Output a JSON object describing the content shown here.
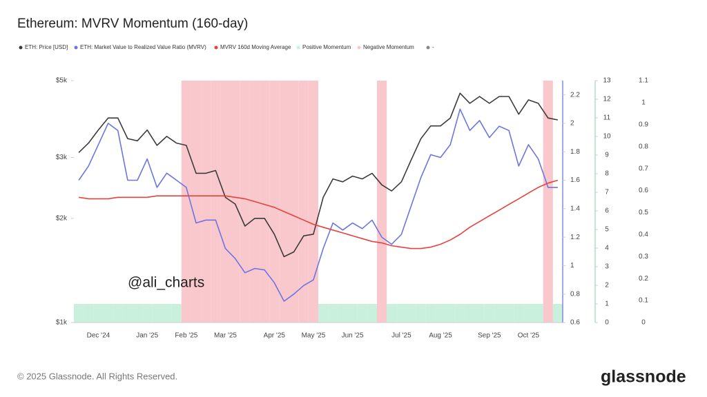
{
  "chart_data": {
    "type": "line",
    "title": "Ethereum: MVRV Momentum (160-day)",
    "categories": [
      null,
      null,
      "Dec '24",
      null,
      null,
      null,
      null,
      "Jan '25",
      null,
      null,
      null,
      "Feb '25",
      null,
      null,
      null,
      "Mar '25",
      null,
      null,
      null,
      null,
      "Apr '25",
      null,
      null,
      null,
      "May '25",
      null,
      null,
      null,
      "Jun '25",
      null,
      null,
      null,
      null,
      "Jul '25",
      null,
      null,
      null,
      "Aug '25",
      null,
      null,
      null,
      null,
      "Sep '25",
      null,
      null,
      null,
      "Oct '25",
      null,
      null,
      null
    ],
    "ylog": true,
    "ylim": [
      1000,
      5000
    ],
    "yticks": [
      {
        "value": 1000,
        "label": "$1k"
      },
      {
        "value": 2000,
        "label": "$2k"
      },
      {
        "value": 3000,
        "label": "$3k"
      },
      {
        "value": 5000,
        "label": "$5k"
      }
    ],
    "y2lim": [
      0.6,
      2.3
    ],
    "y2ticks": [
      0.6,
      0.8,
      1,
      1.2,
      1.4,
      1.6,
      1.8,
      2,
      2.2
    ],
    "y3lim": [
      0,
      13
    ],
    "y3ticks": [
      0,
      1,
      2,
      3,
      4,
      5,
      6,
      7,
      8,
      9,
      10,
      11,
      12,
      13
    ],
    "y4lim": [
      0,
      1.1
    ],
    "y4ticks": [
      0,
      0.1,
      0.2,
      0.3,
      0.4,
      0.5,
      0.6,
      0.7,
      0.8,
      0.9,
      1,
      1.1
    ],
    "grid": false,
    "series": [
      {
        "name": "ETH: Price [USD]",
        "color": "#3a3a3a",
        "kind": "line",
        "axis": "y",
        "values": [
          3100,
          3300,
          3600,
          3900,
          3900,
          3400,
          3350,
          3600,
          3250,
          3450,
          3300,
          3250,
          2700,
          2700,
          2750,
          2300,
          2200,
          1900,
          2000,
          2000,
          1800,
          1550,
          1600,
          1780,
          1800,
          2300,
          2600,
          2550,
          2650,
          2600,
          2700,
          2500,
          2400,
          2550,
          2950,
          3400,
          3700,
          3700,
          3900,
          4600,
          4300,
          4500,
          4300,
          4500,
          4500,
          4000,
          4400,
          4300,
          3900,
          3850
        ]
      },
      {
        "name": "ETH: Market Value to Realized Value Ratio (MVRV)",
        "color": "#6b74e0",
        "kind": "line",
        "axis": "y2",
        "values": [
          1.6,
          1.7,
          1.85,
          2.0,
          1.95,
          1.6,
          1.6,
          1.75,
          1.55,
          1.65,
          1.6,
          1.55,
          1.3,
          1.32,
          1.32,
          1.12,
          1.05,
          0.95,
          0.98,
          0.97,
          0.88,
          0.75,
          0.8,
          0.86,
          0.9,
          1.12,
          1.3,
          1.25,
          1.3,
          1.26,
          1.32,
          1.2,
          1.15,
          1.22,
          1.42,
          1.62,
          1.78,
          1.76,
          1.85,
          2.1,
          1.95,
          2.02,
          1.9,
          1.98,
          1.95,
          1.7,
          1.85,
          1.75,
          1.55,
          1.55
        ]
      },
      {
        "name": "MVRV 160d Moving Average",
        "color": "#e8413c",
        "kind": "line",
        "axis": "y2",
        "values": [
          1.48,
          1.47,
          1.47,
          1.47,
          1.48,
          1.48,
          1.48,
          1.48,
          1.49,
          1.49,
          1.49,
          1.49,
          1.49,
          1.49,
          1.49,
          1.49,
          1.48,
          1.47,
          1.45,
          1.43,
          1.41,
          1.38,
          1.35,
          1.32,
          1.29,
          1.27,
          1.25,
          1.23,
          1.21,
          1.19,
          1.17,
          1.16,
          1.14,
          1.13,
          1.12,
          1.12,
          1.13,
          1.15,
          1.18,
          1.22,
          1.27,
          1.31,
          1.35,
          1.39,
          1.43,
          1.47,
          1.51,
          1.55,
          1.58,
          1.6
        ]
      },
      {
        "name": "Positive Momentum",
        "color": "#c9f0dc",
        "kind": "bar",
        "axis": "y3",
        "values": [
          1,
          1,
          1,
          1,
          1,
          1,
          1,
          1,
          1,
          1,
          1,
          null,
          null,
          null,
          null,
          null,
          null,
          null,
          null,
          null,
          null,
          null,
          null,
          null,
          null,
          1,
          1,
          1,
          1,
          1,
          1,
          null,
          1,
          1,
          1,
          1,
          1,
          1,
          1,
          1,
          1,
          1,
          1,
          1,
          1,
          1,
          1,
          1,
          null,
          1
        ]
      },
      {
        "name": "Negative Momentum",
        "color": "#f9c8cc",
        "kind": "bar",
        "axis": "y3",
        "values": [
          null,
          null,
          null,
          null,
          null,
          null,
          null,
          null,
          null,
          null,
          null,
          13,
          13,
          13,
          13,
          13,
          13,
          13,
          13,
          13,
          13,
          13,
          13,
          13,
          13,
          null,
          null,
          null,
          null,
          null,
          null,
          13,
          null,
          null,
          null,
          null,
          null,
          null,
          null,
          null,
          null,
          null,
          null,
          null,
          null,
          null,
          null,
          null,
          13,
          null
        ]
      },
      {
        "name": "-",
        "color": "#888888",
        "kind": "none",
        "axis": "y4",
        "values": [
          null,
          null,
          null,
          null,
          null,
          null,
          null,
          null,
          null,
          null,
          null,
          null,
          null,
          null,
          null,
          null,
          null,
          null,
          null,
          null,
          null,
          null,
          null,
          null,
          null,
          null,
          null,
          null,
          null,
          null,
          null,
          null,
          null,
          null,
          null,
          null,
          null,
          null,
          null,
          null,
          null,
          null,
          null,
          null,
          null,
          null,
          null,
          null,
          null,
          null
        ]
      }
    ],
    "annotation": "@ali_charts",
    "footer": "© 2025 Glassnode. All Rights Reserved.",
    "brand": "glassnode"
  }
}
